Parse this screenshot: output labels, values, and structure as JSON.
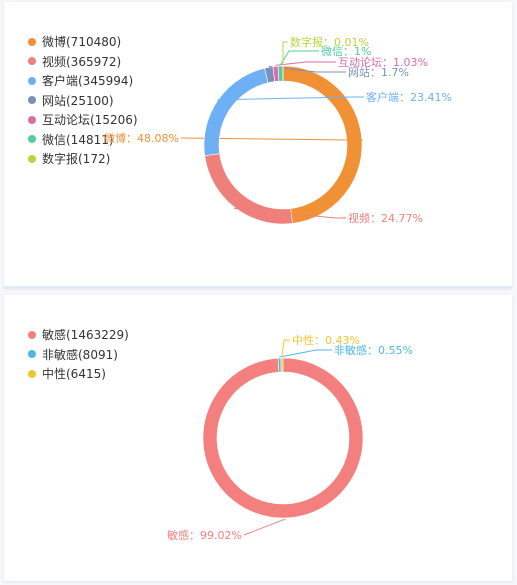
{
  "chart_data": [
    {
      "type": "pie",
      "title": "",
      "legend_position": "top-left",
      "series": [
        {
          "name": "微博",
          "value": 710480,
          "legend": "微博(710480)",
          "label": "微博：48.08%",
          "color": "#ef9134"
        },
        {
          "name": "视频",
          "value": 365972,
          "legend": "视频(365972)",
          "label": "视频：24.77%",
          "color": "#ef7f7a"
        },
        {
          "name": "客户端",
          "value": 345994,
          "legend": "客户端(345994)",
          "label": "客户端：23.41%",
          "color": "#6fb0f4"
        },
        {
          "name": "网站",
          "value": 25100,
          "legend": "网站(25100)",
          "label": "网站：1.7%",
          "color": "#7b8fbd"
        },
        {
          "name": "互动论坛",
          "value": 15206,
          "legend": "互动论坛(15206)",
          "label": "互动论坛：1.03%",
          "color": "#de6ba7"
        },
        {
          "name": "微信",
          "value": 14811,
          "legend": "微信(14811)",
          "label": "微信：1%",
          "color": "#4fcf9d"
        },
        {
          "name": "数字报",
          "value": 172,
          "legend": "数字报(172)",
          "label": "数字报：0.01%",
          "color": "#b6d63c"
        }
      ]
    },
    {
      "type": "pie",
      "title": "",
      "legend_position": "top-left",
      "series": [
        {
          "name": "敏感",
          "value": 1463229,
          "legend": "敏感(1463229)",
          "label": "敏感：99.02%",
          "color": "#f47f7f"
        },
        {
          "name": "非敏感",
          "value": 8091,
          "legend": "非敏感(8091)",
          "label": "非敏感：0.55%",
          "color": "#4fb7e6"
        },
        {
          "name": "中性",
          "value": 6415,
          "legend": "中性(6415)",
          "label": "中性：0.43%",
          "color": "#f2c52c"
        }
      ]
    }
  ]
}
